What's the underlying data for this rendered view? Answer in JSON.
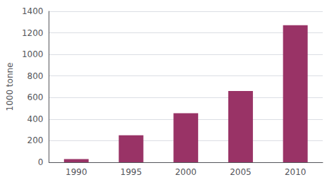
{
  "chart_data": {
    "type": "bar",
    "ylabel": "1000 tonne",
    "categories": [
      "1990",
      "1995",
      "2000",
      "2005",
      "2010"
    ],
    "values": [
      30,
      250,
      455,
      660,
      1270
    ],
    "color": "#993366",
    "ylim": [
      0,
      1400
    ],
    "yticks": [
      0,
      200,
      400,
      600,
      800,
      1000,
      1200,
      1400
    ],
    "grid": true
  }
}
